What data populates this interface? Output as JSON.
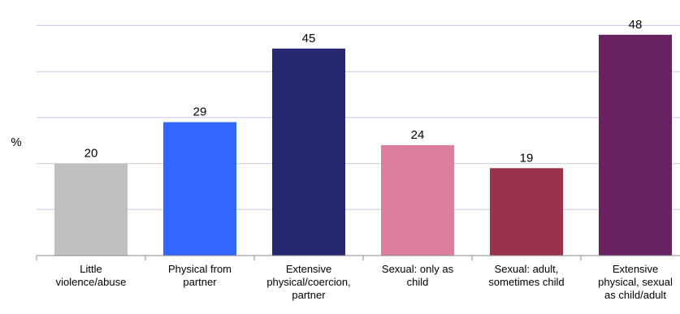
{
  "chart_data": {
    "type": "bar",
    "ylabel": "%",
    "categories": [
      "Little violence/abuse",
      "Physical from partner",
      "Extensive physical/coercion, partner",
      "Sexual: only as child",
      "Sexual: adult, sometimes child",
      "Extensive physical, sexual as child/adult"
    ],
    "category_lines": [
      [
        "Little",
        "violence/abuse"
      ],
      [
        "Physical from",
        "partner"
      ],
      [
        "Extensive",
        "physical/coercion,",
        "partner"
      ],
      [
        "Sexual: only as",
        "child"
      ],
      [
        "Sexual: adult,",
        "sometimes child"
      ],
      [
        "Extensive",
        "physical, sexual",
        "as child/adult"
      ]
    ],
    "values": [
      20,
      29,
      45,
      24,
      19,
      48
    ],
    "value_labels": [
      "20",
      "29",
      "45",
      "24",
      "19",
      "48"
    ],
    "colors": [
      "#c0c0c0",
      "#3366ff",
      "#282870",
      "#dc7f9c",
      "#99334b",
      "#682262"
    ],
    "ylim": [
      0,
      50
    ],
    "grid": true,
    "gridline_color": "#c8c8e6",
    "tick_step": 10
  }
}
